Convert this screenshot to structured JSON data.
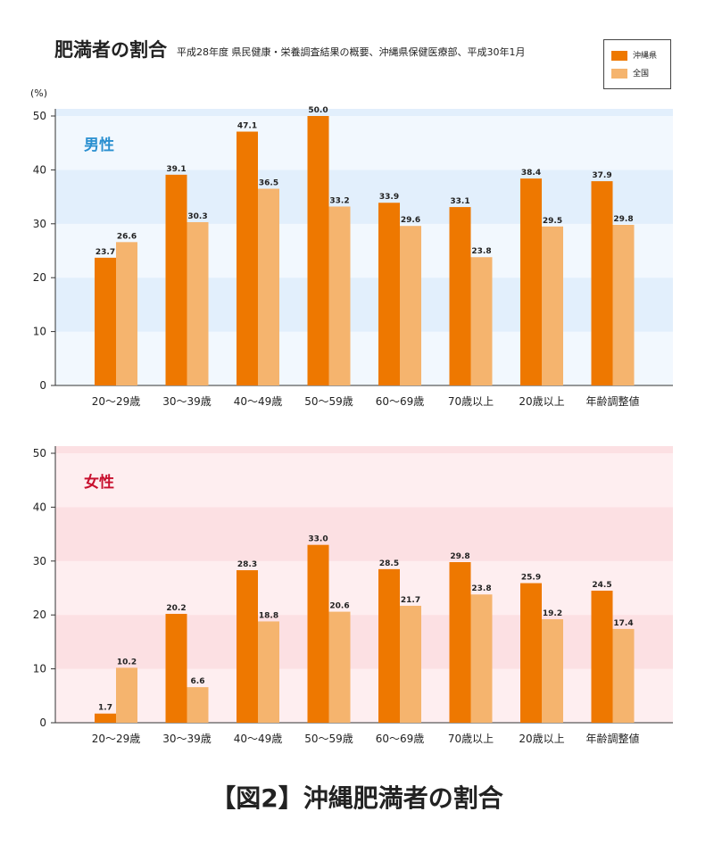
{
  "header": {
    "title": "肥満者の割合",
    "subtitle": "平成28年度 県民健康・栄養調査結果の概要、沖縄県保健医療部、平成30年1月",
    "unit": "(%)"
  },
  "legend": {
    "items": [
      {
        "label": "沖縄県",
        "color": "#EE7800"
      },
      {
        "label": "全国",
        "color": "#F5B46E"
      }
    ]
  },
  "caption": "【図2】沖縄肥満者の割合",
  "colors": {
    "okinawa": "#EE7800",
    "national": "#F5B46E",
    "male_band_light": "#F2F8FE",
    "male_band_dark": "#E2EFFC",
    "female_band_light": "#FEEEF0",
    "female_band_dark": "#FCE0E3",
    "male_label": "#2A8FD0",
    "female_label": "#C8102E"
  },
  "chart_data": [
    {
      "type": "bar",
      "panel_label": "男性",
      "categories": [
        "20〜29歳",
        "30〜39歳",
        "40〜49歳",
        "50〜59歳",
        "60〜69歳",
        "70歳以上",
        "20歳以上",
        "年齢調整値"
      ],
      "series": [
        {
          "name": "沖縄県",
          "values": [
            23.7,
            39.1,
            47.1,
            50.0,
            33.9,
            33.1,
            38.4,
            37.9
          ]
        },
        {
          "name": "全国",
          "values": [
            26.6,
            30.3,
            36.5,
            33.2,
            29.6,
            23.8,
            29.5,
            29.8
          ]
        }
      ],
      "value_labels": {
        "okinawa": [
          "23.7",
          "39.1",
          "47.1",
          "50.0",
          "33.9",
          "33.1",
          "38.4",
          "37.9"
        ],
        "national": [
          "26.6",
          "30.3",
          "36.5",
          "33.2",
          "29.6",
          "23.8",
          "29.5",
          "29.8"
        ]
      },
      "yticks": [
        "0",
        "10",
        "20",
        "30",
        "40",
        "50"
      ],
      "ylim": [
        0,
        50
      ],
      "grid": "alternating bands"
    },
    {
      "type": "bar",
      "panel_label": "女性",
      "categories": [
        "20〜29歳",
        "30〜39歳",
        "40〜49歳",
        "50〜59歳",
        "60〜69歳",
        "70歳以上",
        "20歳以上",
        "年齢調整値"
      ],
      "series": [
        {
          "name": "沖縄県",
          "values": [
            1.7,
            20.2,
            28.3,
            33.0,
            28.5,
            29.8,
            25.9,
            24.5
          ]
        },
        {
          "name": "全国",
          "values": [
            10.2,
            6.6,
            18.8,
            20.6,
            21.7,
            23.8,
            19.2,
            17.4
          ]
        }
      ],
      "value_labels": {
        "okinawa": [
          "1.7",
          "20.2",
          "28.3",
          "33.0",
          "28.5",
          "29.8",
          "25.9",
          "24.5"
        ],
        "national": [
          "10.2",
          "6.6",
          "18.8",
          "20.6",
          "21.7",
          "23.8",
          "19.2",
          "17.4"
        ]
      },
      "yticks": [
        "0",
        "10",
        "20",
        "30",
        "40",
        "50"
      ],
      "ylim": [
        0,
        50
      ],
      "grid": "alternating bands"
    }
  ]
}
